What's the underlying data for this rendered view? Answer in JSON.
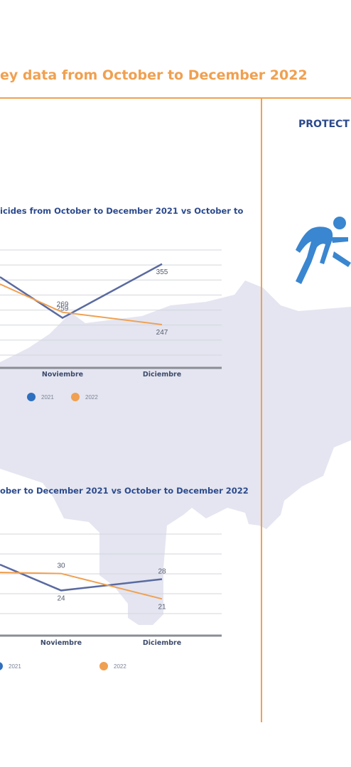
{
  "header": {
    "title": "ey data from October to December 2022",
    "right_heading": "PROTECT"
  },
  "colors": {
    "accent": "#f0a050",
    "heading_blue": "#2c4a8c",
    "map_fill": "#e4e5f0",
    "series_2021": "#5a6aa0",
    "series_2021_legend": "#2e6fbf",
    "series_2022": "#f0a050",
    "icon": "#3a86d0"
  },
  "icons": {
    "right_panel": "running-person-icon"
  },
  "chart_data": [
    {
      "type": "line",
      "title": "icides from October to December 2021 vs October to",
      "categories": [
        "",
        "Noviembre",
        "Diciembre"
      ],
      "series": [
        {
          "name": "2021",
          "values": [
            null,
            259,
            355
          ],
          "labels": [
            "",
            "259",
            "355"
          ]
        },
        {
          "name": "2022",
          "values": [
            null,
            269,
            247
          ],
          "labels": [
            "",
            "269",
            "247"
          ]
        }
      ],
      "legend": "bottom",
      "grid": true
    },
    {
      "type": "line",
      "title": "ober to December 2021 vs October to December 2022",
      "categories": [
        "",
        "Noviembre",
        "Diciembre"
      ],
      "series": [
        {
          "name": "2021",
          "values": [
            null,
            24,
            28
          ],
          "labels": [
            "",
            "24",
            "28"
          ]
        },
        {
          "name": "2022",
          "values": [
            null,
            30,
            21
          ],
          "labels": [
            "",
            "30",
            "21"
          ]
        }
      ],
      "legend": "bottom",
      "grid": true
    }
  ]
}
